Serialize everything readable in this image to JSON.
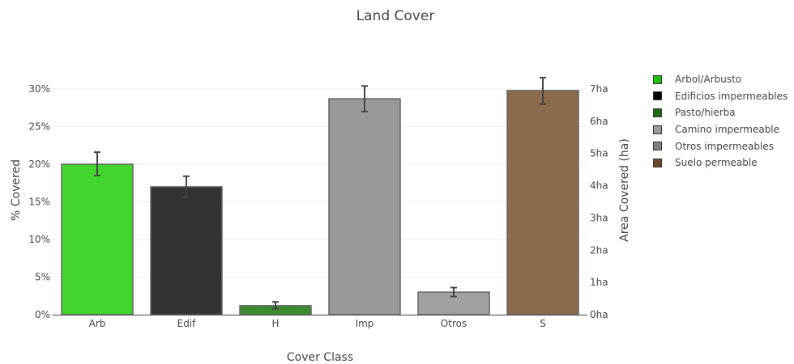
{
  "chart_data": {
    "type": "bar",
    "title": "Land Cover",
    "xlabel": "Cover Class",
    "ylabel": "% Covered",
    "y2label": "Area Covered (ha)",
    "categories": [
      "Arb",
      "Edif",
      "H",
      "Imp",
      "Otros",
      "S"
    ],
    "values": [
      20.0,
      17.0,
      1.2,
      28.7,
      3.0,
      29.8
    ],
    "error_minus": [
      1.5,
      1.4,
      0.4,
      1.7,
      0.6,
      1.8
    ],
    "error_plus": [
      1.6,
      1.4,
      0.5,
      1.7,
      0.6,
      1.7
    ],
    "colors": [
      "#41d52e",
      "#333333",
      "#3c8c2e",
      "#999999",
      "#a1a1a1",
      "#8c6b4d"
    ],
    "ylim": [
      0,
      30
    ],
    "yticks": [
      0,
      5,
      10,
      15,
      20,
      25,
      30
    ],
    "ytick_labels": [
      "0%",
      "5%",
      "10%",
      "15%",
      "20%",
      "25%",
      "30%"
    ],
    "y2lim": [
      0,
      7
    ],
    "y2ticks": [
      0,
      1,
      2,
      3,
      4,
      5,
      6,
      7
    ],
    "y2tick_labels": [
      "0ha",
      "1ha",
      "2ha",
      "3ha",
      "4ha",
      "5ha",
      "6ha",
      "7ha"
    ],
    "grid": true,
    "legend_position": "right",
    "legend": [
      {
        "name": "Arbol/Arbusto",
        "color": "#22c010"
      },
      {
        "name": "Edificios impermeables",
        "color": "#000000"
      },
      {
        "name": "Pasto/hierba",
        "color": "#1f6b14"
      },
      {
        "name": "Camino impermeable",
        "color": "#999999"
      },
      {
        "name": "Otros impermeables",
        "color": "#808080"
      },
      {
        "name": "Suelo permeable",
        "color": "#6b4a2c"
      }
    ]
  }
}
